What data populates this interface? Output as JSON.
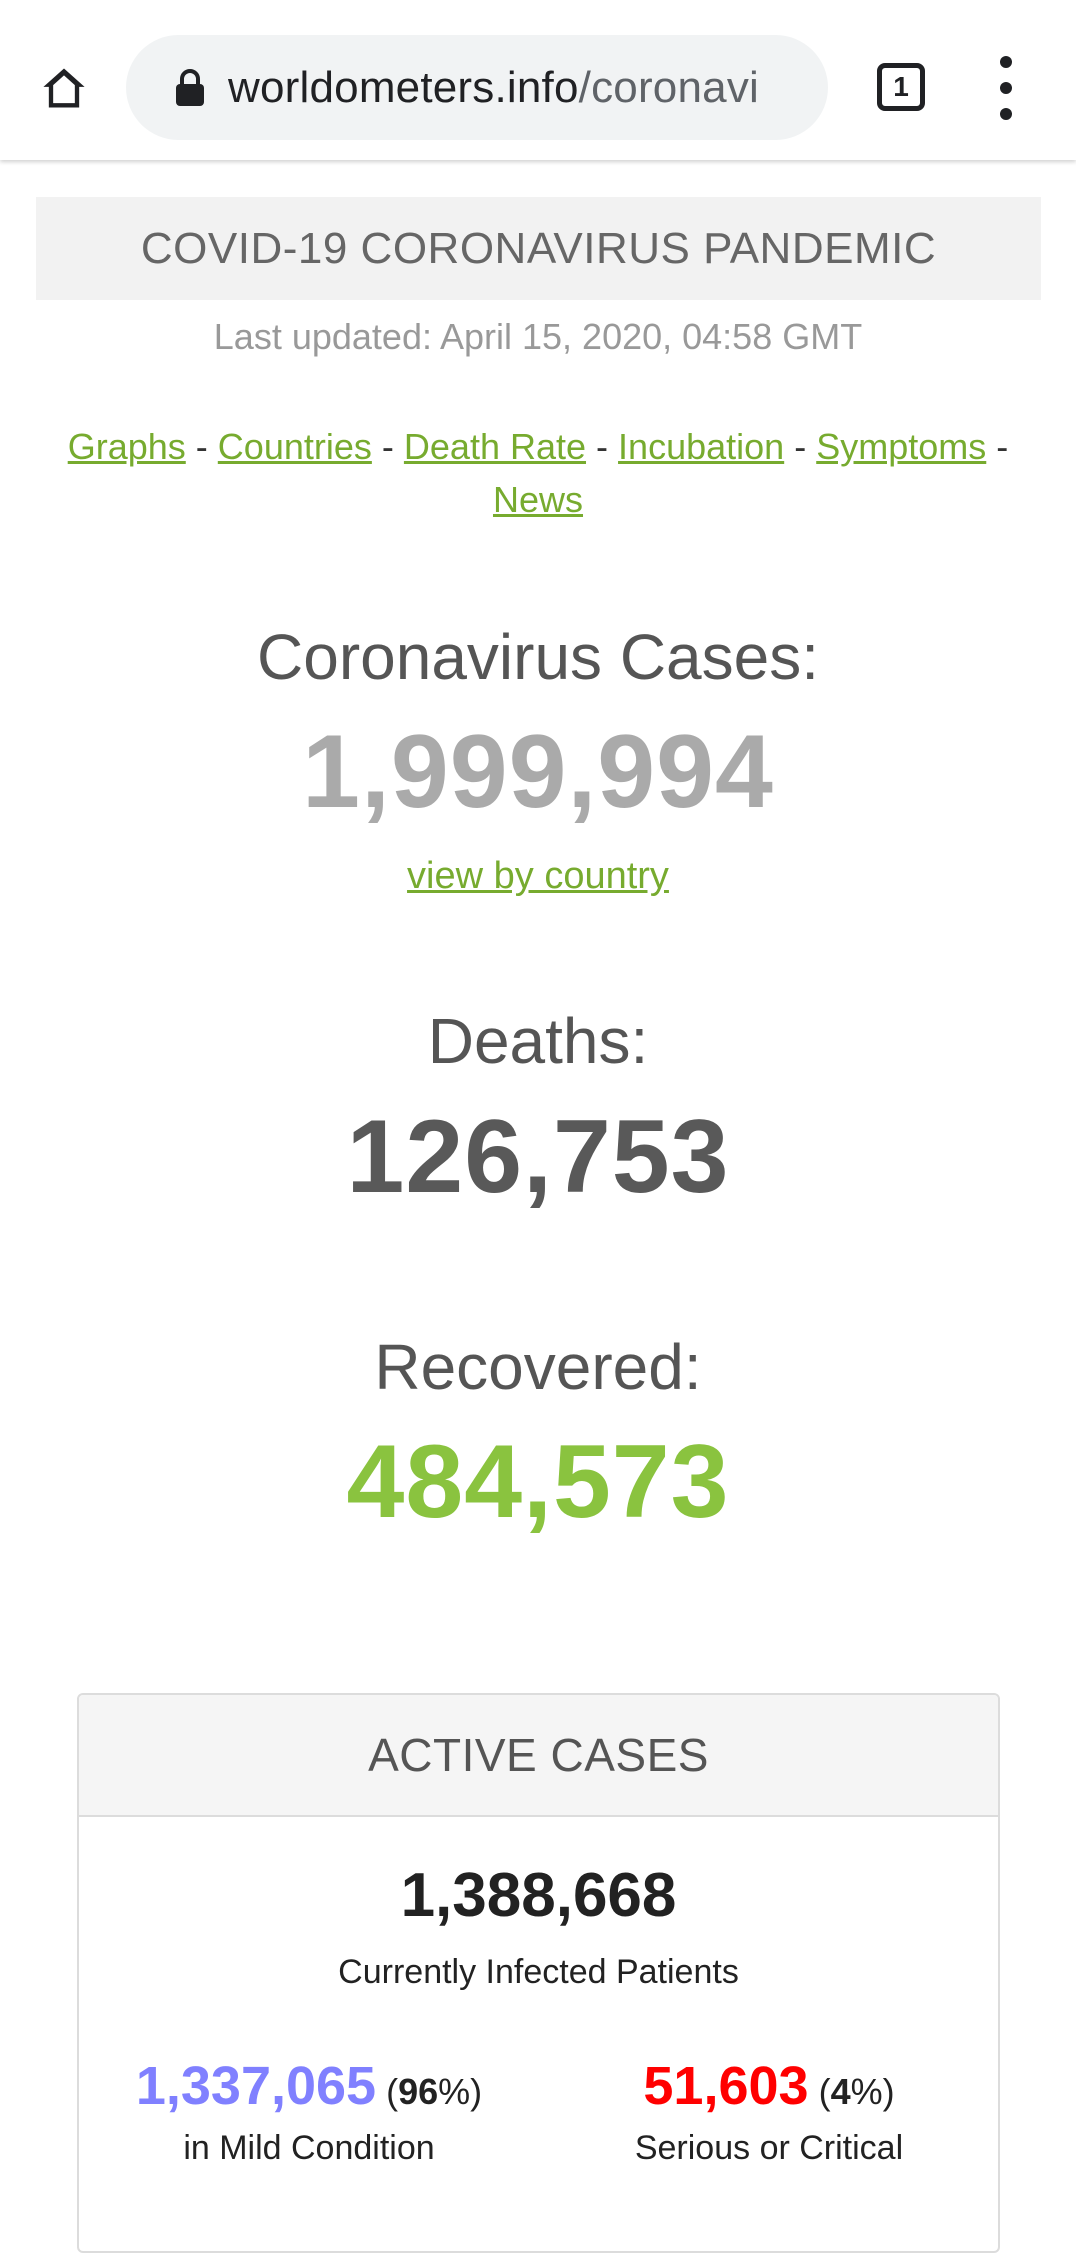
{
  "browser": {
    "url_domain": "worldometers.info",
    "url_path": "/coronavi",
    "tab_count": "1",
    "icons": {
      "home": "home-icon",
      "lock": "lock-icon",
      "tabs": "tabs-icon",
      "menu": "more-vert-icon"
    }
  },
  "page": {
    "title": "COVID-19 CORONAVIRUS PANDEMIC",
    "last_updated": "Last updated: April 15, 2020, 04:58 GMT",
    "nav": {
      "graphs": "Graphs",
      "countries": "Countries",
      "death_rate": "Death Rate",
      "incubation": "Incubation",
      "symptoms": "Symptoms",
      "news": "News",
      "separator": "-"
    }
  },
  "stats": {
    "cases_label": "Coronavirus Cases:",
    "cases_value": "1,999,994",
    "view_by_country": "view by country",
    "deaths_label": "Deaths:",
    "deaths_value": "126,753",
    "recovered_label": "Recovered:",
    "recovered_value": "484,573"
  },
  "active_cases": {
    "title": "ACTIVE CASES",
    "total": "1,388,668",
    "total_caption": "Currently Infected Patients",
    "mild_value": "1,337,065",
    "mild_pct": "96",
    "mild_caption": "in Mild Condition",
    "serious_value": "51,603",
    "serious_pct": "4",
    "serious_caption": "Serious or Critical"
  },
  "colors": {
    "link": "#77ab2f",
    "cases": "#aaaaaa",
    "deaths": "#595959",
    "recovered": "#8ac33f",
    "mild": "#8080ff",
    "serious": "#ff0000"
  }
}
